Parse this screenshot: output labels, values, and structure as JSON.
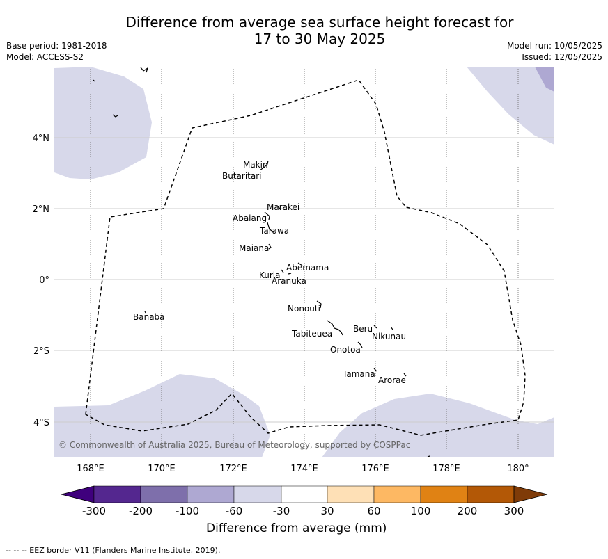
{
  "title": {
    "line1": "Difference from average sea surface height forecast for",
    "line2": "17 to 30 May 2025"
  },
  "meta_left": {
    "base_period": "Base period: 1981-2018",
    "model": "Model: ACCESS-S2"
  },
  "meta_right": {
    "model_run": "Model run: 10/05/2025",
    "issued": "Issued: 12/05/2025"
  },
  "map": {
    "lon_ticks": [
      "168°E",
      "170°E",
      "172°E",
      "174°E",
      "176°E",
      "178°E",
      "180°"
    ],
    "lat_ticks": [
      "4°N",
      "2°N",
      "0°",
      "2°S",
      "4°S"
    ],
    "copyright": "© Commonwealth of Australia 2025, Bureau of Meteorology, supported by COSPPac",
    "islands": [
      {
        "name": "Makin"
      },
      {
        "name": "Butaritari"
      },
      {
        "name": "Marakei"
      },
      {
        "name": "Abaiang"
      },
      {
        "name": "Tarawa"
      },
      {
        "name": "Maiana"
      },
      {
        "name": "Abemama"
      },
      {
        "name": "Kuria"
      },
      {
        "name": "Aranuka"
      },
      {
        "name": "Nonouti"
      },
      {
        "name": "Banaba"
      },
      {
        "name": "Beru"
      },
      {
        "name": "Tabiteuea"
      },
      {
        "name": "Nikunau"
      },
      {
        "name": "Onotoa"
      },
      {
        "name": "Tamana"
      },
      {
        "name": "Arorae"
      }
    ],
    "fill_color": "#d7d8ea",
    "fill_color_dark": "#aea8d2"
  },
  "colorbar": {
    "title": "Difference from average (mm)",
    "ticks": [
      "-300",
      "-200",
      "-100",
      "-60",
      "-30",
      "30",
      "60",
      "100",
      "200",
      "300"
    ],
    "colors": [
      "#3f007d",
      "#54278f",
      "#7e6fab",
      "#aea8d2",
      "#d7d8ea",
      "#ffffff",
      "#fee0b6",
      "#fdb863",
      "#e08214",
      "#b35806",
      "#7f3b08"
    ]
  },
  "footer": "--  --  -- EEZ border V11 (Flanders Marine Institute, 2019)."
}
